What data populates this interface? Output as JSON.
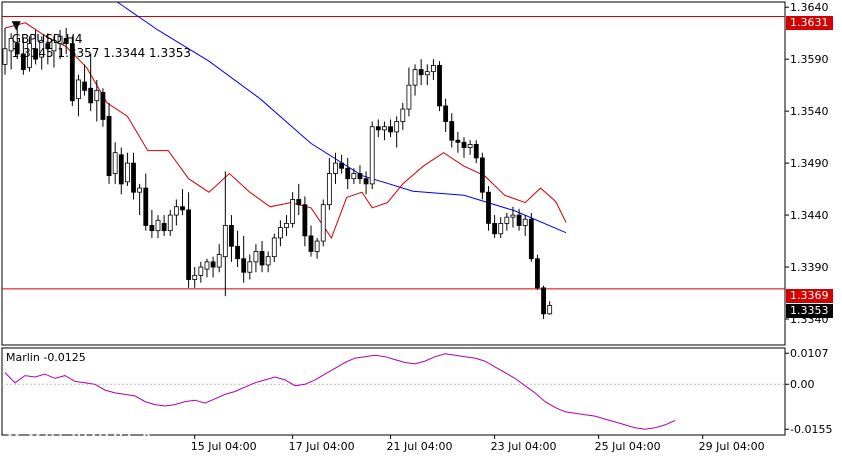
{
  "header": {
    "symbol": "GBPUSD,H4",
    "quote": "1.3345 1.3357 1.3344 1.3353",
    "menu_icon": "dropdown-triangle-icon"
  },
  "chart_data": [
    {
      "type": "candlestick",
      "title": "GBPUSD,H4",
      "ylim": [
        1.3315,
        1.3645
      ],
      "y_ticks": [
        "1.3640",
        "1.3590",
        "1.3540",
        "1.3490",
        "1.3440",
        "1.3390",
        "1.3340"
      ],
      "x_ticks": [
        "15 Jul 04:00",
        "17 Jul 04:00",
        "21 Jul 04:00",
        "23 Jul 04:00",
        "25 Jul 04:00",
        "29 Jul 04:00"
      ],
      "x_tick_bar_index": [
        31,
        47,
        63,
        80,
        97,
        114
      ],
      "horizontal_lines": [
        {
          "price": 1.3631,
          "label": "1.3631",
          "color": "#d40000"
        },
        {
          "price": 1.3369,
          "label": "1.3369",
          "color": "#d40000"
        }
      ],
      "current_price": {
        "price": 1.3353,
        "label": "1.3353"
      },
      "moving_averages": [
        {
          "color": "#0000ff",
          "points": [
            [
              22,
              1.3645
            ],
            [
              30,
              1.3618
            ],
            [
              40,
              1.3588
            ],
            [
              50,
              1.3552
            ],
            [
              60,
              1.3509
            ],
            [
              70,
              1.3478
            ],
            [
              80,
              1.3463
            ],
            [
              90,
              1.3459
            ],
            [
              100,
              1.3444
            ],
            [
              110,
              1.3423
            ]
          ]
        },
        {
          "color": "#d40000",
          "points": [
            [
              0,
              1.362
            ],
            [
              4,
              1.3625
            ],
            [
              8,
              1.3612
            ],
            [
              12,
              1.3602
            ],
            [
              16,
              1.3582
            ],
            [
              20,
              1.3548
            ],
            [
              24,
              1.3535
            ],
            [
              28,
              1.3502
            ],
            [
              32,
              1.3502
            ],
            [
              36,
              1.3475
            ],
            [
              40,
              1.3462
            ],
            [
              44,
              1.348
            ],
            [
              48,
              1.3462
            ],
            [
              52,
              1.3448
            ],
            [
              56,
              1.3452
            ],
            [
              60,
              1.3447
            ],
            [
              64,
              1.3418
            ],
            [
              67,
              1.3457
            ],
            [
              70,
              1.3462
            ],
            [
              72,
              1.3447
            ],
            [
              75,
              1.3452
            ],
            [
              78,
              1.347
            ],
            [
              82,
              1.3487
            ],
            [
              86,
              1.35
            ],
            [
              90,
              1.3487
            ],
            [
              94,
              1.3478
            ],
            [
              98,
              1.3459
            ],
            [
              102,
              1.3452
            ],
            [
              105,
              1.3466
            ],
            [
              108,
              1.3453
            ],
            [
              110,
              1.3433
            ]
          ]
        }
      ],
      "candles": [
        [
          1.3585,
          1.362,
          1.3575,
          1.36
        ],
        [
          1.3598,
          1.3615,
          1.358,
          1.361
        ],
        [
          1.3605,
          1.3622,
          1.359,
          1.3595
        ],
        [
          1.3595,
          1.361,
          1.3575,
          1.358
        ],
        [
          1.3582,
          1.3612,
          1.3578,
          1.3605
        ],
        [
          1.36,
          1.3618,
          1.3585,
          1.359
        ],
        [
          1.3592,
          1.3612,
          1.358,
          1.3608
        ],
        [
          1.3605,
          1.3615,
          1.3585,
          1.36
        ],
        [
          1.3598,
          1.3612,
          1.3582,
          1.3608
        ],
        [
          1.3605,
          1.3618,
          1.359,
          1.3612
        ],
        [
          1.361,
          1.362,
          1.3595,
          1.3605
        ],
        [
          1.3605,
          1.3612,
          1.3545,
          1.355
        ],
        [
          1.3552,
          1.3575,
          1.3535,
          1.357
        ],
        [
          1.3568,
          1.3585,
          1.3555,
          1.356
        ],
        [
          1.3562,
          1.3595,
          1.354,
          1.3548
        ],
        [
          1.355,
          1.357,
          1.353,
          1.356
        ],
        [
          1.3558,
          1.3562,
          1.3525,
          1.3532
        ],
        [
          1.3535,
          1.3548,
          1.347,
          1.3478
        ],
        [
          1.348,
          1.351,
          1.347,
          1.35
        ],
        [
          1.3498,
          1.3505,
          1.346,
          1.347
        ],
        [
          1.3472,
          1.35,
          1.3468,
          1.349
        ],
        [
          1.349,
          1.35,
          1.3455,
          1.3462
        ],
        [
          1.3462,
          1.347,
          1.344,
          1.3466
        ],
        [
          1.3466,
          1.348,
          1.3425,
          1.343
        ],
        [
          1.343,
          1.3445,
          1.3418,
          1.3425
        ],
        [
          1.3425,
          1.344,
          1.3418,
          1.3435
        ],
        [
          1.3432,
          1.344,
          1.342,
          1.3425
        ],
        [
          1.3425,
          1.3445,
          1.342,
          1.344
        ],
        [
          1.344,
          1.3455,
          1.343,
          1.3448
        ],
        [
          1.3448,
          1.3465,
          1.344,
          1.3445
        ],
        [
          1.3445,
          1.3462,
          1.337,
          1.3378
        ],
        [
          1.3378,
          1.339,
          1.337,
          1.3382
        ],
        [
          1.3382,
          1.3395,
          1.3375,
          1.339
        ],
        [
          1.3388,
          1.3398,
          1.338,
          1.3395
        ],
        [
          1.3395,
          1.34,
          1.338,
          1.339
        ],
        [
          1.339,
          1.3412,
          1.3385,
          1.3402
        ],
        [
          1.34,
          1.3482,
          1.3362,
          1.343
        ],
        [
          1.343,
          1.344,
          1.3395,
          1.341
        ],
        [
          1.341,
          1.3425,
          1.339,
          1.3398
        ],
        [
          1.3398,
          1.342,
          1.3375,
          1.3385
        ],
        [
          1.3385,
          1.3402,
          1.3378,
          1.3395
        ],
        [
          1.3395,
          1.3412,
          1.3385,
          1.3405
        ],
        [
          1.3405,
          1.3415,
          1.3385,
          1.3392
        ],
        [
          1.3392,
          1.3405,
          1.3385,
          1.34
        ],
        [
          1.34,
          1.3422,
          1.3395,
          1.3418
        ],
        [
          1.3418,
          1.3435,
          1.341,
          1.3428
        ],
        [
          1.3428,
          1.344,
          1.342,
          1.3432
        ],
        [
          1.3432,
          1.3462,
          1.3428,
          1.3455
        ],
        [
          1.3455,
          1.347,
          1.344,
          1.345
        ],
        [
          1.345,
          1.3458,
          1.341,
          1.342
        ],
        [
          1.342,
          1.343,
          1.34,
          1.3405
        ],
        [
          1.3405,
          1.3418,
          1.3398,
          1.3415
        ],
        [
          1.3415,
          1.3455,
          1.341,
          1.345
        ],
        [
          1.345,
          1.3495,
          1.3445,
          1.348
        ],
        [
          1.348,
          1.35,
          1.347,
          1.349
        ],
        [
          1.349,
          1.3498,
          1.348,
          1.3485
        ],
        [
          1.3485,
          1.3495,
          1.3465,
          1.3475
        ],
        [
          1.3475,
          1.3485,
          1.347,
          1.348
        ],
        [
          1.348,
          1.3488,
          1.347,
          1.3475
        ],
        [
          1.3475,
          1.3482,
          1.346,
          1.347
        ],
        [
          1.347,
          1.353,
          1.3465,
          1.3525
        ],
        [
          1.3525,
          1.3532,
          1.3515,
          1.3522
        ],
        [
          1.3522,
          1.353,
          1.3512,
          1.3525
        ],
        [
          1.3525,
          1.3532,
          1.3515,
          1.352
        ],
        [
          1.352,
          1.3535,
          1.3505,
          1.353
        ],
        [
          1.353,
          1.3548,
          1.3522,
          1.3542
        ],
        [
          1.3542,
          1.3582,
          1.3535,
          1.3565
        ],
        [
          1.3565,
          1.3585,
          1.3555,
          1.358
        ],
        [
          1.358,
          1.359,
          1.3565,
          1.3575
        ],
        [
          1.3575,
          1.3585,
          1.3565,
          1.3578
        ],
        [
          1.3578,
          1.359,
          1.357,
          1.3584
        ],
        [
          1.3584,
          1.3588,
          1.354,
          1.3545
        ],
        [
          1.3545,
          1.3552,
          1.352,
          1.353
        ],
        [
          1.353,
          1.3538,
          1.3505,
          1.3512
        ],
        [
          1.3512,
          1.352,
          1.35,
          1.351
        ],
        [
          1.351,
          1.3515,
          1.3495,
          1.3505
        ],
        [
          1.3505,
          1.3512,
          1.3498,
          1.3508
        ],
        [
          1.3508,
          1.3512,
          1.349,
          1.3495
        ],
        [
          1.3495,
          1.35,
          1.3455,
          1.3462
        ],
        [
          1.3462,
          1.3468,
          1.3425,
          1.3432
        ],
        [
          1.3432,
          1.344,
          1.3418,
          1.3422
        ],
        [
          1.3422,
          1.3438,
          1.3418,
          1.3432
        ],
        [
          1.3432,
          1.3442,
          1.3425,
          1.3438
        ],
        [
          1.3438,
          1.3448,
          1.3428,
          1.344
        ],
        [
          1.344,
          1.3446,
          1.3425,
          1.343
        ],
        [
          1.343,
          1.344,
          1.342,
          1.3436
        ],
        [
          1.3436,
          1.3442,
          1.3395,
          1.3398
        ],
        [
          1.3398,
          1.3402,
          1.3368,
          1.337
        ],
        [
          1.337,
          1.3372,
          1.334,
          1.3345
        ],
        [
          1.3345,
          1.3357,
          1.3344,
          1.3353
        ]
      ],
      "candle_bar_index_start": 0,
      "candle_bar_index_step": 1.2
    },
    {
      "type": "line",
      "title": "Marlin",
      "value_label": "-0.0125",
      "ylim": [
        -0.0175,
        0.0125
      ],
      "y_ticks": [
        "0.0107",
        "0.00",
        "-0.0155"
      ],
      "line_color": "#b000b0",
      "zero_line": true,
      "values": [
        0.004,
        0.0005,
        0.003,
        0.0025,
        0.0035,
        0.002,
        0.003,
        0.001,
        0.0005,
        0.0,
        -0.002,
        -0.003,
        -0.0035,
        -0.004,
        -0.006,
        -0.007,
        -0.0075,
        -0.007,
        -0.006,
        -0.0055,
        -0.0065,
        -0.005,
        -0.0035,
        -0.0025,
        -0.001,
        0.0005,
        0.0015,
        0.0025,
        0.0015,
        -0.0005,
        0.0,
        0.0015,
        0.0035,
        0.0055,
        0.0075,
        0.009,
        0.0095,
        0.01,
        0.0095,
        0.0085,
        0.0075,
        0.007,
        0.008,
        0.0095,
        0.0105,
        0.01,
        0.0095,
        0.009,
        0.008,
        0.006,
        0.004,
        0.002,
        -0.0005,
        -0.003,
        -0.006,
        -0.008,
        -0.0095,
        -0.01,
        -0.0105,
        -0.011,
        -0.012,
        -0.013,
        -0.014,
        -0.015,
        -0.0155,
        -0.015,
        -0.014,
        -0.0125
      ]
    }
  ],
  "logo": {
    "name": "instaforex",
    "tagline": "Instant Forex Trading",
    "icon": "instaforex-logo-icon"
  },
  "colors": {
    "bull": "#ffffff",
    "bear": "#000000",
    "ma_fast": "#d40000",
    "ma_slow": "#0000ff",
    "level": "#d40000",
    "oscillator": "#b000b0"
  }
}
